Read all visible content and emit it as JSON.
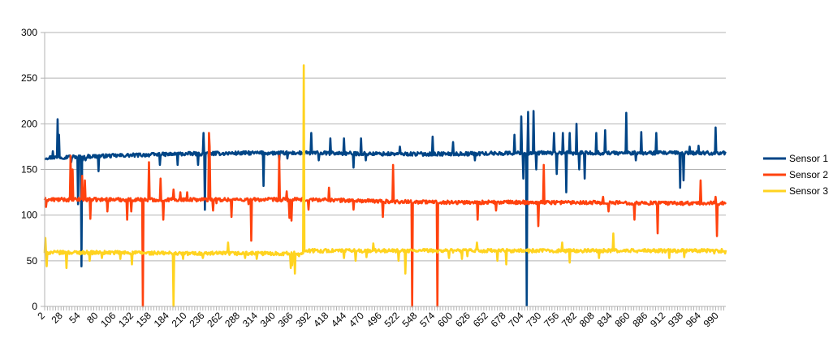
{
  "chart_data": {
    "type": "line",
    "title": "",
    "xlabel": "",
    "ylabel": "",
    "ylim": [
      0,
      300
    ],
    "yticks": [
      0,
      50,
      100,
      150,
      200,
      250,
      300
    ],
    "xlim": [
      1,
      1000
    ],
    "xtick_labels": [
      2,
      28,
      54,
      80,
      106,
      132,
      158,
      184,
      210,
      236,
      262,
      288,
      314,
      340,
      366,
      392,
      418,
      444,
      470,
      496,
      522,
      548,
      574,
      600,
      626,
      652,
      678,
      704,
      730,
      756,
      782,
      808,
      834,
      860,
      886,
      912,
      938,
      964,
      990
    ],
    "grid": "horizontal",
    "legend": "right",
    "series": [
      {
        "name": "Sensor 1",
        "color": "#004586",
        "baseline": [
          [
            1,
            163
          ],
          [
            100,
            165
          ],
          [
            200,
            167
          ],
          [
            300,
            168
          ],
          [
            400,
            168
          ],
          [
            500,
            167
          ],
          [
            600,
            167
          ],
          [
            700,
            168
          ],
          [
            800,
            168
          ],
          [
            900,
            168
          ],
          [
            1000,
            168
          ]
        ],
        "noise": 2,
        "spikes": [
          [
            13,
            170
          ],
          [
            20,
            205
          ],
          [
            22,
            188
          ],
          [
            36,
            165
          ],
          [
            40,
            158
          ],
          [
            50,
            112
          ],
          [
            55,
            44
          ],
          [
            57,
            160
          ],
          [
            61,
            160
          ],
          [
            80,
            148
          ],
          [
            170,
            155
          ],
          [
            196,
            155
          ],
          [
            226,
            155
          ],
          [
            234,
            190
          ],
          [
            236,
            106
          ],
          [
            242,
            160
          ],
          [
            322,
            132
          ],
          [
            345,
            160
          ],
          [
            357,
            162
          ],
          [
            392,
            190
          ],
          [
            403,
            160
          ],
          [
            420,
            184
          ],
          [
            440,
            184
          ],
          [
            454,
            152
          ],
          [
            465,
            184
          ],
          [
            472,
            160
          ],
          [
            522,
            175
          ],
          [
            570,
            186
          ],
          [
            600,
            180
          ],
          [
            632,
            160
          ],
          [
            690,
            188
          ],
          [
            700,
            208
          ],
          [
            703,
            140
          ],
          [
            708,
            1
          ],
          [
            710,
            213
          ],
          [
            718,
            214
          ],
          [
            722,
            150
          ],
          [
            748,
            190
          ],
          [
            752,
            145
          ],
          [
            761,
            190
          ],
          [
            766,
            125
          ],
          [
            771,
            190
          ],
          [
            781,
            200
          ],
          [
            785,
            150
          ],
          [
            793,
            140
          ],
          [
            810,
            190
          ],
          [
            823,
            193
          ],
          [
            854,
            212
          ],
          [
            868,
            160
          ],
          [
            876,
            191
          ],
          [
            898,
            190
          ],
          [
            933,
            130
          ],
          [
            938,
            138
          ],
          [
            947,
            175
          ],
          [
            960,
            176
          ],
          [
            985,
            196
          ]
        ]
      },
      {
        "name": "Sensor 2",
        "color": "#ff420e",
        "baseline": [
          [
            1,
            117
          ],
          [
            100,
            117
          ],
          [
            200,
            117
          ],
          [
            300,
            117
          ],
          [
            400,
            117
          ],
          [
            500,
            115
          ],
          [
            600,
            114
          ],
          [
            700,
            114
          ],
          [
            800,
            114
          ],
          [
            900,
            113
          ],
          [
            1000,
            113
          ]
        ],
        "noise": 2,
        "spikes": [
          [
            3,
            109
          ],
          [
            39,
            165
          ],
          [
            42,
            150
          ],
          [
            56,
            143
          ],
          [
            60,
            138
          ],
          [
            68,
            96
          ],
          [
            93,
            104
          ],
          [
            122,
            95
          ],
          [
            128,
            104
          ],
          [
            145,
            0
          ],
          [
            154,
            158
          ],
          [
            160,
            115
          ],
          [
            171,
            140
          ],
          [
            175,
            95
          ],
          [
            190,
            128
          ],
          [
            200,
            125
          ],
          [
            210,
            125
          ],
          [
            236,
            118
          ],
          [
            242,
            190
          ],
          [
            243,
            175
          ],
          [
            248,
            105
          ],
          [
            253,
            113
          ],
          [
            275,
            98
          ],
          [
            300,
            112
          ],
          [
            304,
            72
          ],
          [
            345,
            165
          ],
          [
            348,
            115
          ],
          [
            356,
            126
          ],
          [
            360,
            97
          ],
          [
            363,
            94
          ],
          [
            388,
            106
          ],
          [
            418,
            130
          ],
          [
            454,
            106
          ],
          [
            497,
            98
          ],
          [
            512,
            155
          ],
          [
            540,
            0
          ],
          [
            577,
            0
          ],
          [
            582,
            114
          ],
          [
            636,
            95
          ],
          [
            663,
            105
          ],
          [
            725,
            88
          ],
          [
            733,
            155
          ],
          [
            820,
            120
          ],
          [
            828,
            104
          ],
          [
            866,
            95
          ],
          [
            900,
            80
          ],
          [
            963,
            138
          ],
          [
            985,
            120
          ],
          [
            987,
            77
          ]
        ]
      },
      {
        "name": "Sensor 3",
        "color": "#ffd320",
        "baseline": [
          [
            1,
            59
          ],
          [
            100,
            59
          ],
          [
            200,
            58
          ],
          [
            300,
            58
          ],
          [
            375,
            58
          ],
          [
            385,
            61
          ],
          [
            500,
            61
          ],
          [
            600,
            61
          ],
          [
            700,
            61
          ],
          [
            800,
            61
          ],
          [
            900,
            61
          ],
          [
            1000,
            61
          ]
        ],
        "noise": 2,
        "spikes": [
          [
            2,
            75
          ],
          [
            4,
            44
          ],
          [
            10,
            60
          ],
          [
            33,
            42
          ],
          [
            67,
            50
          ],
          [
            85,
            53
          ],
          [
            112,
            52
          ],
          [
            129,
            46
          ],
          [
            190,
            0
          ],
          [
            204,
            52
          ],
          [
            233,
            53
          ],
          [
            270,
            70
          ],
          [
            295,
            53
          ],
          [
            312,
            52
          ],
          [
            361,
            55
          ],
          [
            362,
            42
          ],
          [
            364,
            45
          ],
          [
            368,
            36
          ],
          [
            374,
            55
          ],
          [
            380,
            58
          ],
          [
            381,
            264
          ],
          [
            382,
            61
          ],
          [
            387,
            60
          ],
          [
            402,
            60
          ],
          [
            440,
            53
          ],
          [
            457,
            50
          ],
          [
            473,
            54
          ],
          [
            483,
            69
          ],
          [
            520,
            50
          ],
          [
            530,
            36
          ],
          [
            594,
            53
          ],
          [
            613,
            52
          ],
          [
            621,
            55
          ],
          [
            635,
            70
          ],
          [
            665,
            50
          ],
          [
            678,
            46
          ],
          [
            760,
            70
          ],
          [
            771,
            48
          ],
          [
            814,
            53
          ],
          [
            835,
            80
          ],
          [
            857,
            60
          ],
          [
            896,
            60
          ],
          [
            917,
            53
          ],
          [
            939,
            54
          ],
          [
            983,
            58
          ],
          [
            999,
            58
          ]
        ]
      }
    ]
  }
}
